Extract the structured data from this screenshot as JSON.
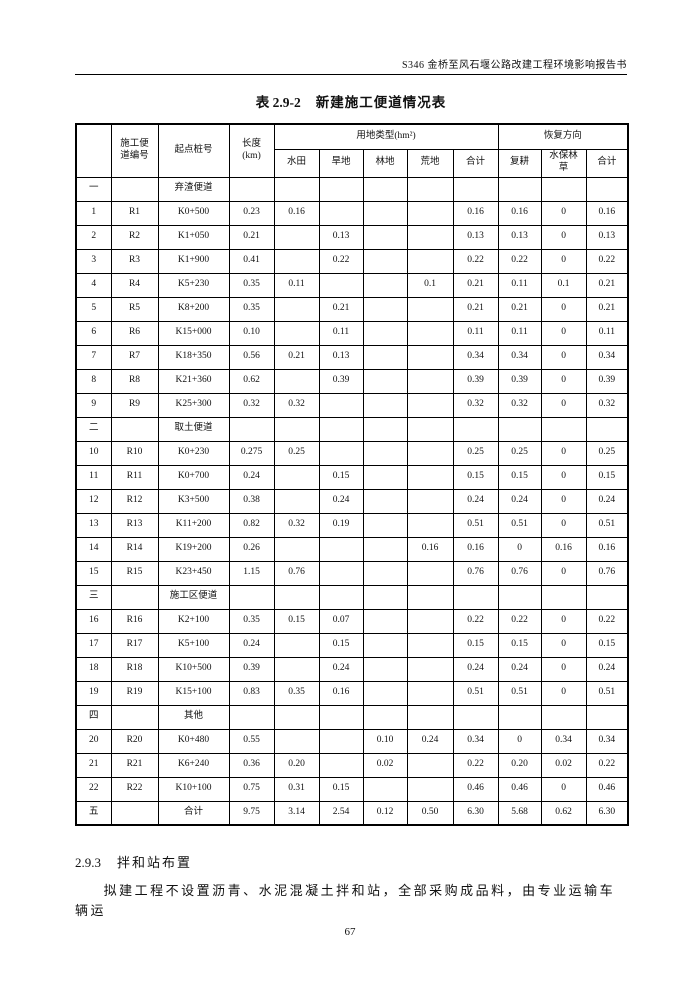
{
  "page": {
    "running_header": "S346 金桥至风石堰公路改建工程环境影响报告书",
    "page_number": "67"
  },
  "table": {
    "caption_label": "表 2.9-2",
    "caption_title": "新建施工便道情况表",
    "header": {
      "col_index": "",
      "col_id": "施工便\n道编号",
      "col_station": "起点桩号",
      "col_length": "长度\n(km)",
      "group_landuse": "用地类型(hm²)",
      "landuse_cols": [
        "水田",
        "旱地",
        "林地",
        "荒地",
        "合计"
      ],
      "group_restore": "恢复方向",
      "restore_cols": [
        "复耕",
        "水保林\n草",
        "合计"
      ]
    },
    "rows": [
      [
        "一",
        "",
        "弃渣便道",
        "",
        "",
        "",
        "",
        "",
        "",
        "",
        "",
        ""
      ],
      [
        "1",
        "R1",
        "K0+500",
        "0.23",
        "0.16",
        "",
        "",
        "",
        "0.16",
        "0.16",
        "0",
        "0.16"
      ],
      [
        "2",
        "R2",
        "K1+050",
        "0.21",
        "",
        "0.13",
        "",
        "",
        "0.13",
        "0.13",
        "0",
        "0.13"
      ],
      [
        "3",
        "R3",
        "K1+900",
        "0.41",
        "",
        "0.22",
        "",
        "",
        "0.22",
        "0.22",
        "0",
        "0.22"
      ],
      [
        "4",
        "R4",
        "K5+230",
        "0.35",
        "0.11",
        "",
        "",
        "0.1",
        "0.21",
        "0.11",
        "0.1",
        "0.21"
      ],
      [
        "5",
        "R5",
        "K8+200",
        "0.35",
        "",
        "0.21",
        "",
        "",
        "0.21",
        "0.21",
        "0",
        "0.21"
      ],
      [
        "6",
        "R6",
        "K15+000",
        "0.10",
        "",
        "0.11",
        "",
        "",
        "0.11",
        "0.11",
        "0",
        "0.11"
      ],
      [
        "7",
        "R7",
        "K18+350",
        "0.56",
        "0.21",
        "0.13",
        "",
        "",
        "0.34",
        "0.34",
        "0",
        "0.34"
      ],
      [
        "8",
        "R8",
        "K21+360",
        "0.62",
        "",
        "0.39",
        "",
        "",
        "0.39",
        "0.39",
        "0",
        "0.39"
      ],
      [
        "9",
        "R9",
        "K25+300",
        "0.32",
        "0.32",
        "",
        "",
        "",
        "0.32",
        "0.32",
        "0",
        "0.32"
      ],
      [
        "二",
        "",
        "取土便道",
        "",
        "",
        "",
        "",
        "",
        "",
        "",
        "",
        ""
      ],
      [
        "10",
        "R10",
        "K0+230",
        "0.275",
        "0.25",
        "",
        "",
        "",
        "0.25",
        "0.25",
        "0",
        "0.25"
      ],
      [
        "11",
        "R11",
        "K0+700",
        "0.24",
        "",
        "0.15",
        "",
        "",
        "0.15",
        "0.15",
        "0",
        "0.15"
      ],
      [
        "12",
        "R12",
        "K3+500",
        "0.38",
        "",
        "0.24",
        "",
        "",
        "0.24",
        "0.24",
        "0",
        "0.24"
      ],
      [
        "13",
        "R13",
        "K11+200",
        "0.82",
        "0.32",
        "0.19",
        "",
        "",
        "0.51",
        "0.51",
        "0",
        "0.51"
      ],
      [
        "14",
        "R14",
        "K19+200",
        "0.26",
        "",
        "",
        "",
        "0.16",
        "0.16",
        "0",
        "0.16",
        "0.16"
      ],
      [
        "15",
        "R15",
        "K23+450",
        "1.15",
        "0.76",
        "",
        "",
        "",
        "0.76",
        "0.76",
        "0",
        "0.76"
      ],
      [
        "三",
        "",
        "施工区便道",
        "",
        "",
        "",
        "",
        "",
        "",
        "",
        "",
        ""
      ],
      [
        "16",
        "R16",
        "K2+100",
        "0.35",
        "0.15",
        "0.07",
        "",
        "",
        "0.22",
        "0.22",
        "0",
        "0.22"
      ],
      [
        "17",
        "R17",
        "K5+100",
        "0.24",
        "",
        "0.15",
        "",
        "",
        "0.15",
        "0.15",
        "0",
        "0.15"
      ],
      [
        "18",
        "R18",
        "K10+500",
        "0.39",
        "",
        "0.24",
        "",
        "",
        "0.24",
        "0.24",
        "0",
        "0.24"
      ],
      [
        "19",
        "R19",
        "K15+100",
        "0.83",
        "0.35",
        "0.16",
        "",
        "",
        "0.51",
        "0.51",
        "0",
        "0.51"
      ],
      [
        "四",
        "",
        "其他",
        "",
        "",
        "",
        "",
        "",
        "",
        "",
        "",
        ""
      ],
      [
        "20",
        "R20",
        "K0+480",
        "0.55",
        "",
        "",
        "0.10",
        "0.24",
        "0.34",
        "0",
        "0.34",
        "0.34"
      ],
      [
        "21",
        "R21",
        "K6+240",
        "0.36",
        "0.20",
        "",
        "0.02",
        "",
        "0.22",
        "0.20",
        "0.02",
        "0.22"
      ],
      [
        "22",
        "R22",
        "K10+100",
        "0.75",
        "0.31",
        "0.15",
        "",
        "",
        "0.46",
        "0.46",
        "0",
        "0.46"
      ],
      [
        "五",
        "",
        "合计",
        "9.75",
        "3.14",
        "2.54",
        "0.12",
        "0.50",
        "6.30",
        "5.68",
        "0.62",
        "6.30"
      ]
    ]
  },
  "section": {
    "number": "2.9.3",
    "title": "拌和站布置",
    "paragraph": "拟建工程不设置沥青、水泥混凝土拌和站，全部采购成品料，由专业运输车辆运"
  }
}
